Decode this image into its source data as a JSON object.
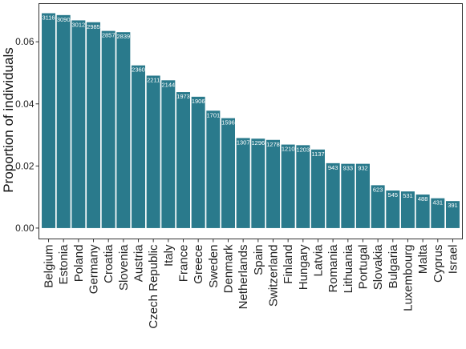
{
  "chart_data": {
    "type": "bar",
    "ylabel": "Proportion of individuals",
    "xlabel": "",
    "title": "",
    "ylim": [
      -0.0035,
      0.0723
    ],
    "yticks": [
      0.0,
      0.02,
      0.04,
      0.06
    ],
    "ytick_labels": [
      "0.00",
      "0.02",
      "0.04",
      "0.06"
    ],
    "grid": false,
    "legend": "none",
    "bar_color": "#2a7a8c",
    "categories": [
      "Belgium",
      "Estonia",
      "Poland",
      "Germany",
      "Croatia",
      "Slovenia",
      "Austria",
      "Czech Republic",
      "Italy",
      "France",
      "Greece",
      "Sweden",
      "Denmark",
      "Netherlands",
      "Spain",
      "Switzerland",
      "Finland",
      "Hungary",
      "Latvia",
      "Romania",
      "Lithuania",
      "Portugal",
      "Slovakia",
      "Bulgaria",
      "Luxembourg",
      "Malta",
      "Cyprus",
      "Israel"
    ],
    "values": [
      0.0692,
      0.0686,
      0.0669,
      0.0663,
      0.0635,
      0.0631,
      0.0524,
      0.0491,
      0.0476,
      0.0438,
      0.0423,
      0.0378,
      0.0354,
      0.029,
      0.0288,
      0.0284,
      0.0269,
      0.0267,
      0.0253,
      0.0209,
      0.0207,
      0.0207,
      0.0138,
      0.0121,
      0.0118,
      0.0108,
      0.0096,
      0.0087
    ],
    "bar_labels": [
      "3116",
      "3090",
      "3012",
      "2985",
      "2857",
      "2839",
      "2360",
      "2211",
      "2144",
      "1973",
      "1906",
      "1701",
      "1596",
      "1307",
      "1296",
      "1278",
      "1210",
      "1203",
      "1137",
      "943",
      "933",
      "932",
      "623",
      "545",
      "531",
      "488",
      "431",
      "391"
    ]
  }
}
